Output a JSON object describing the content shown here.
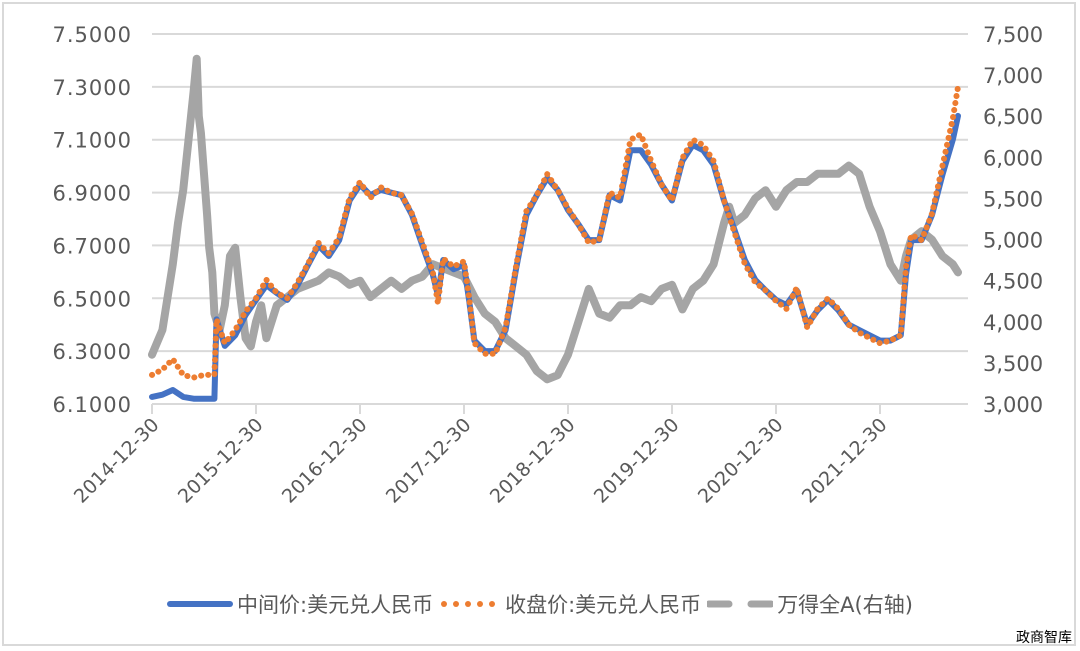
{
  "chart_data": {
    "type": "line",
    "title": "",
    "xlabel": "",
    "ylabel_left": "",
    "ylabel_right": "",
    "x_tick_labels": [
      "2014-12-30",
      "2015-12-30",
      "2016-12-30",
      "2017-12-30",
      "2018-12-30",
      "2019-12-30",
      "2020-12-30",
      "2021-12-30"
    ],
    "y_left": {
      "min": 6.1,
      "max": 7.5,
      "step": 0.2,
      "ticks": [
        "7.5000",
        "7.3000",
        "7.1000",
        "6.9000",
        "6.7000",
        "6.5000",
        "6.3000",
        "6.1000"
      ]
    },
    "y_right": {
      "min": 3000,
      "max": 7500,
      "step": 500,
      "ticks": [
        "7,500",
        "7,000",
        "6,500",
        "6,000",
        "5,500",
        "5,000",
        "4,500",
        "4,000",
        "3,500",
        "3,000"
      ]
    },
    "grid": true,
    "legend_position": "bottom",
    "x_unit": "years since 2014-12-30",
    "series": [
      {
        "name": "中间价:美元兑人民币",
        "axis": "left",
        "style": "solid",
        "color": "#4472C4",
        "x": [
          0,
          0.1,
          0.2,
          0.3,
          0.4,
          0.5,
          0.6,
          0.62,
          0.7,
          0.8,
          0.9,
          1.0,
          1.1,
          1.2,
          1.3,
          1.4,
          1.5,
          1.6,
          1.7,
          1.8,
          1.9,
          2.0,
          2.1,
          2.2,
          2.3,
          2.4,
          2.5,
          2.6,
          2.7,
          2.75,
          2.8,
          2.9,
          3.0,
          3.05,
          3.1,
          3.2,
          3.3,
          3.4,
          3.5,
          3.6,
          3.7,
          3.8,
          3.9,
          4.0,
          4.1,
          4.2,
          4.3,
          4.4,
          4.5,
          4.6,
          4.7,
          4.8,
          4.9,
          5.0,
          5.1,
          5.2,
          5.3,
          5.4,
          5.5,
          5.6,
          5.7,
          5.8,
          5.9,
          6.0,
          6.1,
          6.2,
          6.3,
          6.4,
          6.5,
          6.6,
          6.7,
          6.8,
          6.9,
          7.0,
          7.1,
          7.2,
          7.25,
          7.3,
          7.4,
          7.5,
          7.6,
          7.7,
          7.75
        ],
        "values": [
          6.127,
          6.135,
          6.153,
          6.127,
          6.12,
          6.12,
          6.12,
          6.42,
          6.32,
          6.36,
          6.437,
          6.494,
          6.55,
          6.52,
          6.494,
          6.55,
          6.626,
          6.7,
          6.66,
          6.72,
          6.87,
          6.93,
          6.89,
          6.91,
          6.9,
          6.89,
          6.815,
          6.7,
          6.59,
          6.51,
          6.645,
          6.61,
          6.626,
          6.49,
          6.34,
          6.3,
          6.3,
          6.38,
          6.61,
          6.815,
          6.89,
          6.955,
          6.91,
          6.834,
          6.78,
          6.72,
          6.72,
          6.89,
          6.87,
          7.06,
          7.06,
          7.005,
          6.93,
          6.87,
          7.02,
          7.08,
          7.06,
          7.005,
          6.87,
          6.76,
          6.645,
          6.57,
          6.53,
          6.494,
          6.475,
          6.53,
          6.4,
          6.455,
          6.494,
          6.455,
          6.4,
          6.38,
          6.36,
          6.34,
          6.34,
          6.36,
          6.59,
          6.72,
          6.72,
          6.815,
          6.967,
          7.1,
          7.19
        ]
      },
      {
        "name": "收盘价:美元兑人民币",
        "axis": "left",
        "style": "dotted",
        "color": "#ED7D31",
        "x": [
          0,
          0.1,
          0.2,
          0.3,
          0.4,
          0.5,
          0.6,
          0.62,
          0.7,
          0.8,
          0.9,
          1.0,
          1.1,
          1.2,
          1.3,
          1.4,
          1.5,
          1.6,
          1.7,
          1.8,
          1.9,
          2.0,
          2.1,
          2.2,
          2.3,
          2.4,
          2.5,
          2.6,
          2.7,
          2.75,
          2.8,
          2.9,
          3.0,
          3.05,
          3.1,
          3.2,
          3.3,
          3.4,
          3.5,
          3.6,
          3.7,
          3.8,
          3.9,
          4.0,
          4.1,
          4.2,
          4.3,
          4.4,
          4.5,
          4.6,
          4.7,
          4.8,
          4.9,
          5.0,
          5.1,
          5.2,
          5.3,
          5.4,
          5.5,
          5.6,
          5.7,
          5.8,
          5.9,
          6.0,
          6.1,
          6.2,
          6.3,
          6.4,
          6.5,
          6.6,
          6.7,
          6.8,
          6.9,
          7.0,
          7.1,
          7.2,
          7.25,
          7.3,
          7.4,
          7.5,
          7.6,
          7.7,
          7.75
        ],
        "values": [
          6.21,
          6.23,
          6.27,
          6.21,
          6.2,
          6.21,
          6.21,
          6.42,
          6.33,
          6.38,
          6.45,
          6.5,
          6.57,
          6.52,
          6.5,
          6.56,
          6.63,
          6.71,
          6.67,
          6.73,
          6.88,
          6.94,
          6.88,
          6.92,
          6.9,
          6.89,
          6.82,
          6.71,
          6.6,
          6.48,
          6.65,
          6.62,
          6.64,
          6.5,
          6.33,
          6.29,
          6.29,
          6.39,
          6.62,
          6.83,
          6.89,
          6.97,
          6.91,
          6.84,
          6.78,
          6.71,
          6.72,
          6.9,
          6.88,
          7.1,
          7.12,
          7.02,
          6.93,
          6.87,
          7.03,
          7.1,
          7.08,
          7.02,
          6.87,
          6.75,
          6.63,
          6.56,
          6.53,
          6.49,
          6.46,
          6.54,
          6.39,
          6.46,
          6.5,
          6.46,
          6.4,
          6.37,
          6.35,
          6.33,
          6.34,
          6.36,
          6.62,
          6.74,
          6.72,
          6.82,
          7.0,
          7.18,
          7.3
        ]
      },
      {
        "name": "万得全A(右轴)",
        "axis": "right",
        "style": "dashed",
        "color": "#A5A5A5",
        "x": [
          0,
          0.05,
          0.1,
          0.15,
          0.2,
          0.25,
          0.3,
          0.35,
          0.4,
          0.43,
          0.45,
          0.47,
          0.5,
          0.53,
          0.55,
          0.58,
          0.6,
          0.65,
          0.7,
          0.75,
          0.8,
          0.85,
          0.9,
          0.95,
          1.0,
          1.05,
          1.1,
          1.2,
          1.3,
          1.4,
          1.5,
          1.6,
          1.7,
          1.8,
          1.9,
          2.0,
          2.1,
          2.2,
          2.3,
          2.4,
          2.5,
          2.6,
          2.7,
          2.8,
          2.9,
          3.0,
          3.1,
          3.2,
          3.3,
          3.4,
          3.5,
          3.6,
          3.7,
          3.8,
          3.9,
          4.0,
          4.1,
          4.2,
          4.3,
          4.4,
          4.5,
          4.6,
          4.7,
          4.8,
          4.9,
          5.0,
          5.1,
          5.2,
          5.3,
          5.4,
          5.5,
          5.55,
          5.6,
          5.7,
          5.8,
          5.9,
          6.0,
          6.1,
          6.2,
          6.3,
          6.4,
          6.5,
          6.6,
          6.7,
          6.8,
          6.9,
          7.0,
          7.1,
          7.2,
          7.25,
          7.3,
          7.4,
          7.5,
          7.6,
          7.7,
          7.75
        ],
        "values": [
          3600,
          3750,
          3900,
          4300,
          4700,
          5200,
          5600,
          6200,
          6800,
          7200,
          6500,
          6300,
          5800,
          5300,
          4900,
          4600,
          4100,
          3900,
          4200,
          4800,
          4900,
          4300,
          3800,
          3700,
          4000,
          4200,
          3800,
          4200,
          4300,
          4400,
          4450,
          4500,
          4600,
          4550,
          4450,
          4500,
          4300,
          4400,
          4500,
          4400,
          4500,
          4550,
          4700,
          4650,
          4600,
          4550,
          4300,
          4100,
          4000,
          3800,
          3700,
          3600,
          3400,
          3300,
          3350,
          3600,
          4000,
          4400,
          4100,
          4050,
          4200,
          4200,
          4300,
          4250,
          4400,
          4450,
          4150,
          4400,
          4500,
          4700,
          5200,
          5400,
          5200,
          5300,
          5500,
          5600,
          5400,
          5600,
          5700,
          5700,
          5800,
          5800,
          5800,
          5900,
          5800,
          5400,
          5100,
          4700,
          4500,
          4800,
          5000,
          5100,
          5000,
          4800,
          4700,
          4600
        ]
      }
    ]
  },
  "legend": {
    "items": [
      {
        "label": "中间价:美元兑人民币",
        "swatch": "solid",
        "color": "#4472C4"
      },
      {
        "label": "收盘价:美元兑人民币",
        "swatch": "dotted",
        "color": "#ED7D31"
      },
      {
        "label": "万得全A(右轴)",
        "swatch": "dashed",
        "color": "#A5A5A5"
      }
    ]
  },
  "watermark": "政商智库"
}
